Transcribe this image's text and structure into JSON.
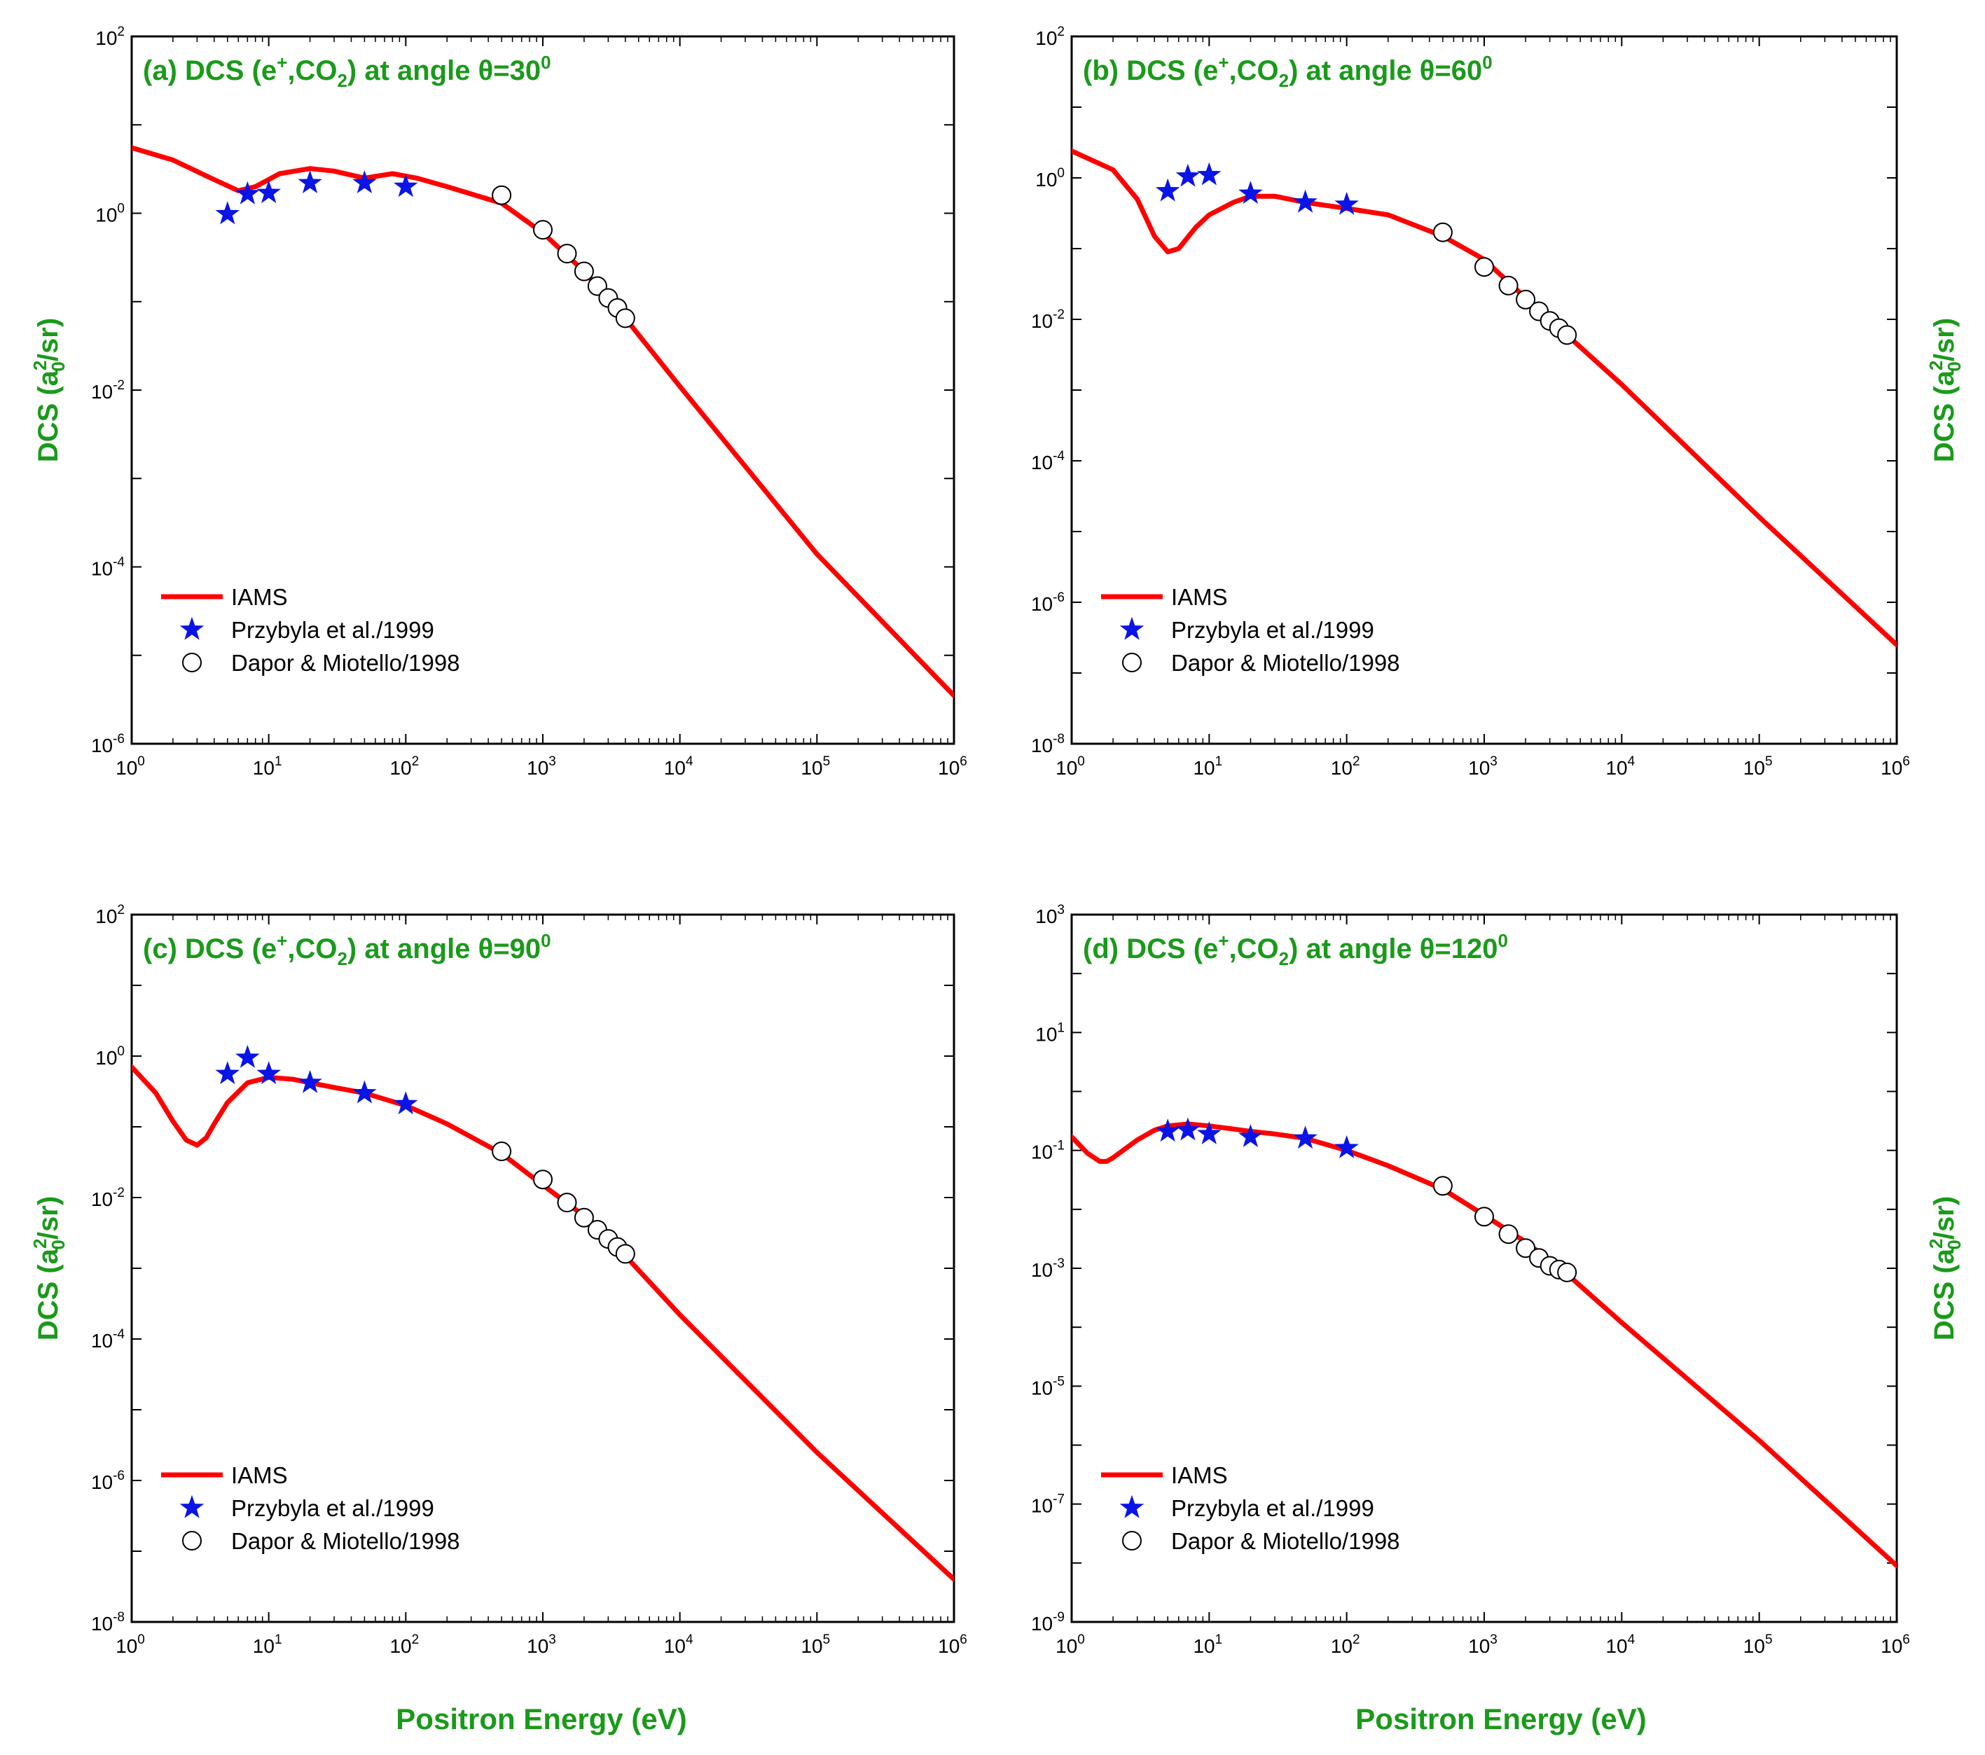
{
  "colors": {
    "theory": "#ff0000",
    "exp_star": "#0a14e6",
    "title": "#1a9a1a",
    "axis_label": "#1a9a1a"
  },
  "figure": {
    "x_axis_label": "Positron Energy (eV)",
    "y_axis_label": {
      "prefix": "DCS (a",
      "sub": "0",
      "sup": "2",
      "suffix": "/sr)"
    }
  },
  "chart_data": [
    {
      "id": "a",
      "type": "line",
      "xscale": "log",
      "yscale": "log",
      "xlim": [
        1,
        1000000
      ],
      "ylim": [
        1e-06,
        100
      ],
      "x_tick_labels": [
        {
          "b": "10",
          "e": "0"
        },
        {
          "b": "10",
          "e": "1"
        },
        {
          "b": "10",
          "e": "2"
        },
        {
          "b": "10",
          "e": "3"
        },
        {
          "b": "10",
          "e": "4"
        },
        {
          "b": "10",
          "e": "5"
        },
        {
          "b": "10",
          "e": "6"
        }
      ],
      "y_tick_labels": [
        {
          "b": "10",
          "e": "-6"
        },
        {
          "b": "10",
          "e": "-4"
        },
        {
          "b": "10",
          "e": "-2"
        },
        {
          "b": "10",
          "e": "0"
        },
        {
          "b": "10",
          "e": "2"
        }
      ],
      "title": {
        "prefix": "(a) DCS (e",
        "sup1": "+",
        "mid": ",CO",
        "sub": "2",
        "rest": ") at angle θ=30",
        "sup2": "0"
      },
      "legend_position": "lower-left",
      "show_ylabel": "left",
      "series": [
        {
          "name": "IAMS",
          "kind": "line",
          "x": [
            1,
            2,
            4,
            6,
            8,
            12,
            20,
            30,
            50,
            80,
            120,
            200,
            500,
            1000,
            2000,
            4000,
            10000,
            100000,
            1000000
          ],
          "y": [
            5.5,
            4.0,
            2.4,
            1.8,
            2.0,
            2.8,
            3.2,
            3.0,
            2.5,
            2.8,
            2.5,
            2.0,
            1.3,
            0.6,
            0.22,
            0.065,
            0.011,
            0.00014,
            3.5e-06
          ]
        },
        {
          "name": "Przybyla et al./1999",
          "kind": "star",
          "x": [
            5,
            7,
            10,
            20,
            50,
            100
          ],
          "y": [
            0.98,
            1.65,
            1.7,
            2.2,
            2.2,
            2.0
          ]
        },
        {
          "name": "Dapor & Miotello/1998",
          "kind": "circle",
          "x": [
            500,
            1000,
            1500,
            2000,
            2500,
            3000,
            3500,
            4000
          ],
          "y": [
            1.6,
            0.65,
            0.35,
            0.22,
            0.15,
            0.11,
            0.085,
            0.065
          ]
        }
      ]
    },
    {
      "id": "b",
      "type": "line",
      "xscale": "log",
      "yscale": "log",
      "xlim": [
        1,
        1000000
      ],
      "ylim": [
        1e-08,
        100
      ],
      "x_tick_labels": [
        {
          "b": "10",
          "e": "0"
        },
        {
          "b": "10",
          "e": "1"
        },
        {
          "b": "10",
          "e": "2"
        },
        {
          "b": "10",
          "e": "3"
        },
        {
          "b": "10",
          "e": "4"
        },
        {
          "b": "10",
          "e": "5"
        },
        {
          "b": "10",
          "e": "6"
        }
      ],
      "y_tick_labels": [
        {
          "b": "10",
          "e": "-8"
        },
        {
          "b": "10",
          "e": "-6"
        },
        {
          "b": "10",
          "e": "-4"
        },
        {
          "b": "10",
          "e": "-2"
        },
        {
          "b": "10",
          "e": "0"
        },
        {
          "b": "10",
          "e": "2"
        }
      ],
      "title": {
        "prefix": "(b) DCS (e",
        "sup1": "+",
        "mid": ",CO",
        "sub": "2",
        "rest": ") at angle θ=60",
        "sup2": "0"
      },
      "legend_position": "lower-left",
      "show_ylabel": "right",
      "series": [
        {
          "name": "IAMS",
          "kind": "line",
          "x": [
            1,
            2,
            3,
            4,
            5,
            6,
            8,
            10,
            15,
            20,
            30,
            50,
            100,
            200,
            500,
            1000,
            2000,
            4000,
            10000,
            100000,
            1000000
          ],
          "y": [
            2.4,
            1.3,
            0.5,
            0.15,
            0.09,
            0.1,
            0.2,
            0.3,
            0.45,
            0.55,
            0.55,
            0.45,
            0.37,
            0.3,
            0.15,
            0.07,
            0.02,
            0.006,
            0.0012,
            1.6e-05,
            2.5e-07
          ]
        },
        {
          "name": "Przybyla et al./1999",
          "kind": "star",
          "x": [
            5,
            7,
            10,
            20,
            50,
            100
          ],
          "y": [
            0.65,
            1.05,
            1.1,
            0.6,
            0.45,
            0.42
          ]
        },
        {
          "name": "Dapor & Miotello/1998",
          "kind": "circle",
          "x": [
            500,
            1000,
            1500,
            2000,
            2500,
            3000,
            3500,
            4000
          ],
          "y": [
            0.17,
            0.055,
            0.03,
            0.019,
            0.013,
            0.0095,
            0.0075,
            0.006
          ]
        }
      ]
    },
    {
      "id": "c",
      "type": "line",
      "xscale": "log",
      "yscale": "log",
      "xlim": [
        1,
        1000000
      ],
      "ylim": [
        1e-08,
        100
      ],
      "x_tick_labels": [
        {
          "b": "10",
          "e": "0"
        },
        {
          "b": "10",
          "e": "1"
        },
        {
          "b": "10",
          "e": "2"
        },
        {
          "b": "10",
          "e": "3"
        },
        {
          "b": "10",
          "e": "4"
        },
        {
          "b": "10",
          "e": "5"
        },
        {
          "b": "10",
          "e": "6"
        }
      ],
      "y_tick_labels": [
        {
          "b": "10",
          "e": "-8"
        },
        {
          "b": "10",
          "e": "-6"
        },
        {
          "b": "10",
          "e": "-4"
        },
        {
          "b": "10",
          "e": "-2"
        },
        {
          "b": "10",
          "e": "0"
        },
        {
          "b": "10",
          "e": "2"
        }
      ],
      "title": {
        "prefix": "(c) DCS (e",
        "sup1": "+",
        "mid": ",CO",
        "sub": "2",
        "rest": ") at angle θ=90",
        "sup2": "0"
      },
      "legend_position": "lower-left",
      "show_ylabel": "left",
      "series": [
        {
          "name": "IAMS",
          "kind": "line",
          "x": [
            1,
            1.5,
            2,
            2.5,
            3,
            3.5,
            4,
            5,
            7,
            10,
            15,
            20,
            30,
            50,
            100,
            200,
            500,
            1000,
            2000,
            4000,
            10000,
            100000,
            1000000
          ],
          "y": [
            0.7,
            0.3,
            0.12,
            0.065,
            0.055,
            0.07,
            0.11,
            0.22,
            0.42,
            0.5,
            0.47,
            0.42,
            0.36,
            0.3,
            0.2,
            0.11,
            0.042,
            0.015,
            0.0055,
            0.0015,
            0.00022,
            2.5e-06,
            4e-08
          ]
        },
        {
          "name": "Przybyla et al./1999",
          "kind": "star",
          "x": [
            5,
            7,
            10,
            20,
            50,
            100
          ],
          "y": [
            0.56,
            0.95,
            0.56,
            0.42,
            0.3,
            0.21
          ]
        },
        {
          "name": "Dapor & Miotello/1998",
          "kind": "circle",
          "x": [
            500,
            1000,
            1500,
            2000,
            2500,
            3000,
            3500,
            4000
          ],
          "y": [
            0.045,
            0.018,
            0.0085,
            0.0052,
            0.0035,
            0.0026,
            0.002,
            0.0016
          ]
        }
      ]
    },
    {
      "id": "d",
      "type": "line",
      "xscale": "log",
      "yscale": "log",
      "xlim": [
        1,
        1000000
      ],
      "ylim": [
        1e-09,
        1000
      ],
      "x_tick_labels": [
        {
          "b": "10",
          "e": "0"
        },
        {
          "b": "10",
          "e": "1"
        },
        {
          "b": "10",
          "e": "2"
        },
        {
          "b": "10",
          "e": "3"
        },
        {
          "b": "10",
          "e": "4"
        },
        {
          "b": "10",
          "e": "5"
        },
        {
          "b": "10",
          "e": "6"
        }
      ],
      "y_tick_labels": [
        {
          "b": "10",
          "e": "-9"
        },
        {
          "b": "10",
          "e": "-7"
        },
        {
          "b": "10",
          "e": "-5"
        },
        {
          "b": "10",
          "e": "-3"
        },
        {
          "b": "10",
          "e": "-1"
        },
        {
          "b": "10",
          "e": "1"
        },
        {
          "b": "10",
          "e": "3"
        }
      ],
      "title": {
        "prefix": "(d) DCS (e",
        "sup1": "+",
        "mid": ",CO",
        "sub": "2",
        "rest": ") at angle θ=120",
        "sup2": "0"
      },
      "legend_position": "lower-left",
      "show_ylabel": "right",
      "series": [
        {
          "name": "IAMS",
          "kind": "line",
          "x": [
            1,
            1.3,
            1.6,
            1.8,
            2,
            2.5,
            3,
            4,
            5,
            7,
            10,
            15,
            20,
            30,
            50,
            100,
            200,
            500,
            1000,
            2000,
            4000,
            10000,
            100000,
            1000000
          ],
          "y": [
            0.17,
            0.09,
            0.065,
            0.065,
            0.075,
            0.11,
            0.15,
            0.22,
            0.26,
            0.28,
            0.26,
            0.23,
            0.21,
            0.19,
            0.16,
            0.1,
            0.055,
            0.022,
            0.008,
            0.0028,
            0.0008,
            0.00012,
            1.2e-06,
            9e-09
          ]
        },
        {
          "name": "Przybyla et al./1999",
          "kind": "star",
          "x": [
            5,
            7,
            10,
            20,
            50,
            100
          ],
          "y": [
            0.21,
            0.22,
            0.19,
            0.17,
            0.16,
            0.11
          ]
        },
        {
          "name": "Dapor & Miotello/1998",
          "kind": "circle",
          "x": [
            500,
            1000,
            1500,
            2000,
            2500,
            3000,
            3500,
            4000
          ],
          "y": [
            0.025,
            0.0075,
            0.0038,
            0.0022,
            0.0015,
            0.0011,
            0.00095,
            0.00085
          ]
        }
      ]
    }
  ]
}
